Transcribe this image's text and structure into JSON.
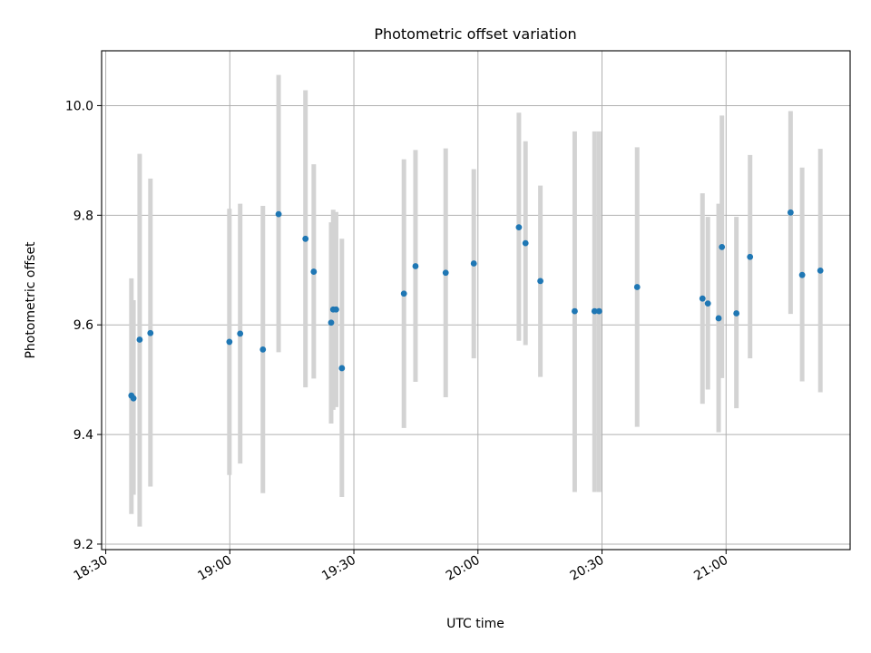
{
  "chart_data": {
    "type": "scatter",
    "title": "Photometric offset variation",
    "xlabel": "UTC time",
    "ylabel": "Photometric offset",
    "x_unit": "minutes after midnight UTC",
    "xlim": [
      1109,
      1290
    ],
    "ylim": [
      9.19,
      10.1
    ],
    "xticks": [
      1110,
      1140,
      1170,
      1200,
      1230,
      1260
    ],
    "xtick_labels": [
      "18:30",
      "19:00",
      "19:30",
      "20:00",
      "20:30",
      "21:00"
    ],
    "yticks": [
      9.2,
      9.4,
      9.6,
      9.8,
      10.0
    ],
    "ytick_labels": [
      "9.2",
      "9.4",
      "9.6",
      "9.8",
      "10.0"
    ],
    "grid": true,
    "colors": {
      "point": "#1f77b4",
      "errorbar": "#d3d3d3",
      "grid": "#b0b0b0"
    },
    "points": [
      {
        "x": 1116.2,
        "y": 9.471,
        "err_low": 9.255,
        "err_high": 9.685
      },
      {
        "x": 1116.7,
        "y": 9.466,
        "err_low": 9.29,
        "err_high": 9.645
      },
      {
        "x": 1118.2,
        "y": 9.573,
        "err_low": 9.232,
        "err_high": 9.912
      },
      {
        "x": 1120.8,
        "y": 9.585,
        "err_low": 9.305,
        "err_high": 9.867
      },
      {
        "x": 1139.9,
        "y": 9.569,
        "err_low": 9.326,
        "err_high": 9.812
      },
      {
        "x": 1142.5,
        "y": 9.584,
        "err_low": 9.347,
        "err_high": 9.821
      },
      {
        "x": 1148.0,
        "y": 9.555,
        "err_low": 9.293,
        "err_high": 9.817
      },
      {
        "x": 1151.8,
        "y": 9.802,
        "err_low": 9.55,
        "err_high": 10.056
      },
      {
        "x": 1158.3,
        "y": 9.757,
        "err_low": 9.486,
        "err_high": 10.028
      },
      {
        "x": 1160.3,
        "y": 9.697,
        "err_low": 9.502,
        "err_high": 9.893
      },
      {
        "x": 1164.5,
        "y": 9.604,
        "err_low": 9.42,
        "err_high": 9.787
      },
      {
        "x": 1165.0,
        "y": 9.628,
        "err_low": 9.445,
        "err_high": 9.81
      },
      {
        "x": 1165.7,
        "y": 9.628,
        "err_low": 9.45,
        "err_high": 9.806
      },
      {
        "x": 1167.1,
        "y": 9.521,
        "err_low": 9.286,
        "err_high": 9.757
      },
      {
        "x": 1182.1,
        "y": 9.657,
        "err_low": 9.412,
        "err_high": 9.902
      },
      {
        "x": 1184.9,
        "y": 9.707,
        "err_low": 9.496,
        "err_high": 9.919
      },
      {
        "x": 1192.2,
        "y": 9.695,
        "err_low": 9.468,
        "err_high": 9.922
      },
      {
        "x": 1199.0,
        "y": 9.712,
        "err_low": 9.539,
        "err_high": 9.884
      },
      {
        "x": 1209.9,
        "y": 9.778,
        "err_low": 9.571,
        "err_high": 9.987
      },
      {
        "x": 1211.5,
        "y": 9.749,
        "err_low": 9.563,
        "err_high": 9.935
      },
      {
        "x": 1215.1,
        "y": 9.68,
        "err_low": 9.505,
        "err_high": 9.854
      },
      {
        "x": 1223.4,
        "y": 9.625,
        "err_low": 9.295,
        "err_high": 9.953
      },
      {
        "x": 1228.2,
        "y": 9.625,
        "err_low": 9.295,
        "err_high": 9.953
      },
      {
        "x": 1229.3,
        "y": 9.625,
        "err_low": 9.295,
        "err_high": 9.953
      },
      {
        "x": 1238.5,
        "y": 9.669,
        "err_low": 9.414,
        "err_high": 9.924
      },
      {
        "x": 1254.3,
        "y": 9.648,
        "err_low": 9.456,
        "err_high": 9.84
      },
      {
        "x": 1255.6,
        "y": 9.639,
        "err_low": 9.482,
        "err_high": 9.797
      },
      {
        "x": 1258.2,
        "y": 9.612,
        "err_low": 9.404,
        "err_high": 9.821
      },
      {
        "x": 1259.0,
        "y": 9.742,
        "err_low": 9.503,
        "err_high": 9.982
      },
      {
        "x": 1262.5,
        "y": 9.621,
        "err_low": 9.448,
        "err_high": 9.797
      },
      {
        "x": 1265.8,
        "y": 9.724,
        "err_low": 9.539,
        "err_high": 9.91
      },
      {
        "x": 1275.6,
        "y": 9.805,
        "err_low": 9.62,
        "err_high": 9.99
      },
      {
        "x": 1278.4,
        "y": 9.691,
        "err_low": 9.497,
        "err_high": 9.887
      },
      {
        "x": 1282.8,
        "y": 9.699,
        "err_low": 9.477,
        "err_high": 9.921
      }
    ]
  }
}
